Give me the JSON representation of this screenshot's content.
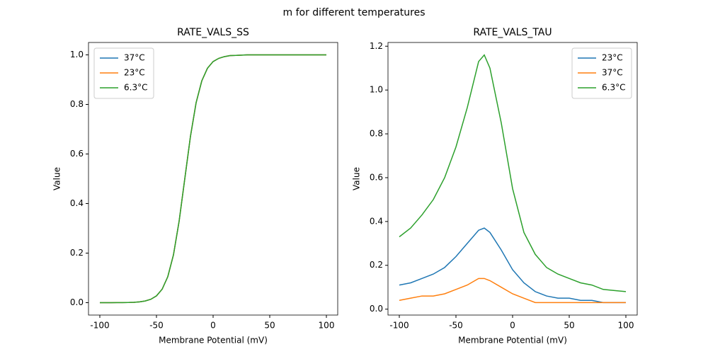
{
  "title": "m for different temperatures",
  "chart_data": [
    {
      "type": "line",
      "title": "RATE_VALS_SS",
      "xlabel": "Membrane Potential (mV)",
      "ylabel": "Value",
      "x": [
        -100,
        -95,
        -90,
        -85,
        -80,
        -75,
        -70,
        -65,
        -60,
        -55,
        -50,
        -45,
        -40,
        -35,
        -30,
        -25,
        -20,
        -15,
        -10,
        -5,
        0,
        5,
        10,
        15,
        20,
        25,
        30,
        35,
        40,
        45,
        50,
        55,
        60,
        65,
        70,
        75,
        80,
        85,
        90,
        95,
        100
      ],
      "series": [
        {
          "name": "37°C",
          "color": "#1f77b4",
          "values": [
            0,
            0,
            0.0001,
            0.0002,
            0.0004,
            0.0008,
            0.0016,
            0.0033,
            0.0067,
            0.0136,
            0.0274,
            0.0543,
            0.105,
            0.193,
            0.329,
            0.5,
            0.671,
            0.807,
            0.895,
            0.946,
            0.973,
            0.986,
            0.993,
            0.997,
            0.998,
            0.999,
            1,
            1,
            1,
            1,
            1,
            1,
            1,
            1,
            1,
            1,
            1,
            1,
            1,
            1,
            1
          ]
        },
        {
          "name": "23°C",
          "color": "#ff7f0e",
          "values": [
            0,
            0,
            0.0001,
            0.0002,
            0.0004,
            0.0008,
            0.0016,
            0.0033,
            0.0067,
            0.0136,
            0.0274,
            0.0543,
            0.105,
            0.193,
            0.329,
            0.5,
            0.671,
            0.807,
            0.895,
            0.946,
            0.973,
            0.986,
            0.993,
            0.997,
            0.998,
            0.999,
            1,
            1,
            1,
            1,
            1,
            1,
            1,
            1,
            1,
            1,
            1,
            1,
            1,
            1,
            1
          ]
        },
        {
          "name": "6.3°C",
          "color": "#2ca02c",
          "values": [
            0,
            0,
            0.0001,
            0.0002,
            0.0004,
            0.0008,
            0.0016,
            0.0033,
            0.0067,
            0.0136,
            0.0274,
            0.0543,
            0.105,
            0.193,
            0.329,
            0.5,
            0.671,
            0.807,
            0.895,
            0.946,
            0.973,
            0.986,
            0.993,
            0.997,
            0.998,
            0.999,
            1,
            1,
            1,
            1,
            1,
            1,
            1,
            1,
            1,
            1,
            1,
            1,
            1,
            1,
            1
          ]
        }
      ],
      "xlim": [
        -110,
        110
      ],
      "xticks": [
        -100,
        -50,
        0,
        50,
        100
      ],
      "ylim": [
        -0.05,
        1.05
      ],
      "yticks": [
        {
          "value": 0,
          "label": "0.0"
        },
        {
          "value": 0.2,
          "label": "0.2"
        },
        {
          "value": 0.4,
          "label": "0.4"
        },
        {
          "value": 0.6,
          "label": "0.6"
        },
        {
          "value": 0.8,
          "label": "0.8"
        },
        {
          "value": 1,
          "label": "1.0"
        }
      ],
      "legend": "upper-left",
      "grid": false
    },
    {
      "type": "line",
      "title": "RATE_VALS_TAU",
      "xlabel": "Membrane Potential (mV)",
      "ylabel": "Value",
      "x": [
        -100,
        -90,
        -80,
        -70,
        -60,
        -50,
        -40,
        -30,
        -25,
        -20,
        -10,
        0,
        10,
        20,
        30,
        40,
        50,
        60,
        70,
        80,
        90,
        100
      ],
      "series": [
        {
          "name": "23°C",
          "color": "#1f77b4",
          "values": [
            0.11,
            0.12,
            0.14,
            0.16,
            0.19,
            0.24,
            0.3,
            0.36,
            0.37,
            0.35,
            0.27,
            0.18,
            0.12,
            0.08,
            0.06,
            0.05,
            0.05,
            0.04,
            0.04,
            0.03,
            0.03,
            0.03
          ]
        },
        {
          "name": "37°C",
          "color": "#ff7f0e",
          "values": [
            0.04,
            0.05,
            0.06,
            0.06,
            0.07,
            0.09,
            0.11,
            0.14,
            0.14,
            0.13,
            0.1,
            0.07,
            0.05,
            0.03,
            0.03,
            0.03,
            0.03,
            0.03,
            0.03,
            0.03,
            0.03,
            0.03
          ]
        },
        {
          "name": "6.3°C",
          "color": "#2ca02c",
          "values": [
            0.33,
            0.37,
            0.43,
            0.5,
            0.6,
            0.74,
            0.92,
            1.13,
            1.16,
            1.1,
            0.85,
            0.55,
            0.35,
            0.25,
            0.19,
            0.16,
            0.14,
            0.12,
            0.11,
            0.09,
            0.085,
            0.08
          ]
        }
      ],
      "xlim": [
        -110,
        110
      ],
      "xticks": [
        -100,
        -50,
        0,
        50,
        100
      ],
      "ylim": [
        -0.027,
        1.217
      ],
      "yticks": [
        {
          "value": 0,
          "label": "0.0"
        },
        {
          "value": 0.2,
          "label": "0.2"
        },
        {
          "value": 0.4,
          "label": "0.4"
        },
        {
          "value": 0.6,
          "label": "0.6"
        },
        {
          "value": 0.8,
          "label": "0.8"
        },
        {
          "value": 1,
          "label": "1.0"
        },
        {
          "value": 1.2,
          "label": "1.2"
        }
      ],
      "legend": "upper-right",
      "grid": false
    }
  ]
}
